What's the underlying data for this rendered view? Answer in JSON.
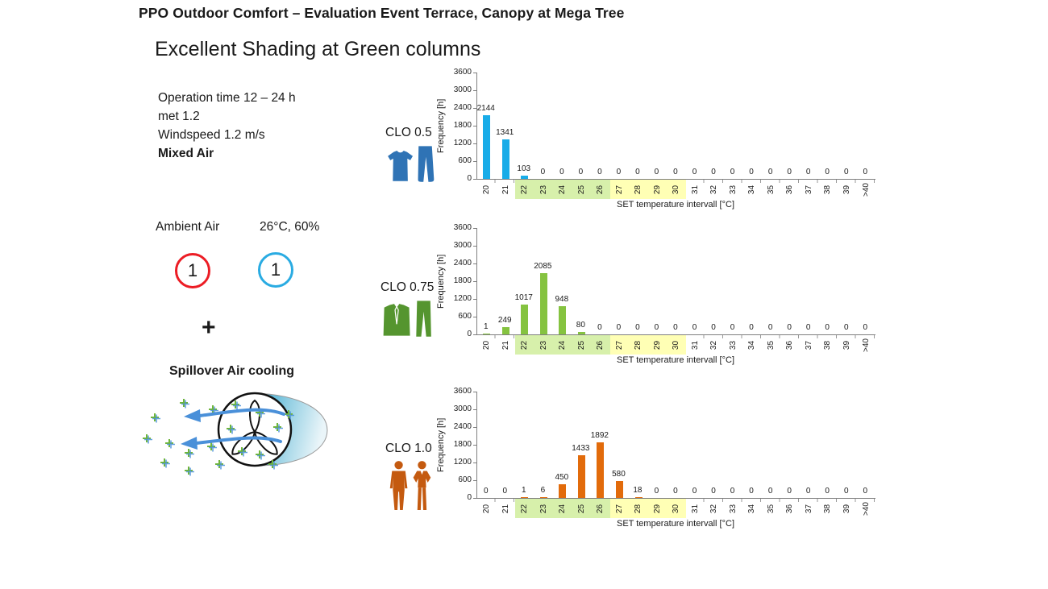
{
  "slide": {
    "title": "PPO Outdoor Comfort – Evaluation Event Terrace, Canopy at Mega Tree",
    "subtitle": "Excellent Shading at Green columns"
  },
  "conditions": {
    "line1": "Operation time 12 – 24 h",
    "line2": "met 1.2",
    "line3": "Windspeed 1.2 m/s",
    "line4": "Mixed Air"
  },
  "ambient": {
    "label": "Ambient Air",
    "value": "26°C, 60%",
    "red_badge": "1",
    "blue_badge": "1",
    "red_color": "#ec1c24",
    "blue_color": "#29abe2",
    "plus": "+"
  },
  "spillover": {
    "label": "Spillover Air cooling"
  },
  "chart_data": [
    {
      "type": "bar",
      "title": "CLO 0.5",
      "icon": "tshirt-and-jeans-icon",
      "bar_color": "#18ace8",
      "categories": [
        "20",
        "21",
        "22",
        "23",
        "24",
        "25",
        "26",
        "27",
        "28",
        "29",
        "30",
        "31",
        "32",
        "33",
        "34",
        "35",
        "36",
        "37",
        "38",
        "39",
        ">40"
      ],
      "values": [
        2144,
        1341,
        103,
        0,
        0,
        0,
        0,
        0,
        0,
        0,
        0,
        0,
        0,
        0,
        0,
        0,
        0,
        0,
        0,
        0,
        0
      ],
      "xlabel": "SET temperature intervall [°C]",
      "ylabel": "Frequency  [h]",
      "ylim": [
        0,
        3600
      ],
      "yticks": [
        0,
        600,
        1200,
        1800,
        2400,
        3000,
        3600
      ],
      "grid": false,
      "highlight_bands": [
        {
          "from": "22",
          "to": "26",
          "color": "#d7f0ab"
        },
        {
          "from": "27",
          "to": "30",
          "color": "#ffffb5"
        }
      ]
    },
    {
      "type": "bar",
      "title": "CLO 0.75",
      "icon": "shirt-and-trousers-icon",
      "bar_color": "#85c340",
      "categories": [
        "20",
        "21",
        "22",
        "23",
        "24",
        "25",
        "26",
        "27",
        "28",
        "29",
        "30",
        "31",
        "32",
        "33",
        "34",
        "35",
        "36",
        "37",
        "38",
        "39",
        ">40"
      ],
      "values": [
        1,
        249,
        1017,
        2085,
        948,
        80,
        0,
        0,
        0,
        0,
        0,
        0,
        0,
        0,
        0,
        0,
        0,
        0,
        0,
        0,
        0
      ],
      "xlabel": "SET temperature intervall [°C]",
      "ylabel": "Frequency  [h]",
      "ylim": [
        0,
        3600
      ],
      "yticks": [
        0,
        600,
        1200,
        1800,
        2400,
        3000,
        3600
      ],
      "grid": false,
      "highlight_bands": [
        {
          "from": "22",
          "to": "26",
          "color": "#d7f0ab"
        },
        {
          "from": "27",
          "to": "30",
          "color": "#ffffb5"
        }
      ]
    },
    {
      "type": "bar",
      "title": "CLO 1.0",
      "icon": "businessman-and-businesswoman-icon",
      "bar_color": "#e26b0b",
      "categories": [
        "20",
        "21",
        "22",
        "23",
        "24",
        "25",
        "26",
        "27",
        "28",
        "29",
        "30",
        "31",
        "32",
        "33",
        "34",
        "35",
        "36",
        "37",
        "38",
        "39",
        ">40"
      ],
      "values": [
        0,
        0,
        1,
        6,
        450,
        1433,
        1892,
        580,
        18,
        0,
        0,
        0,
        0,
        0,
        0,
        0,
        0,
        0,
        0,
        0,
        0
      ],
      "xlabel": "SET temperature intervall [°C]",
      "ylabel": "Frequency  [h]",
      "ylim": [
        0,
        3600
      ],
      "yticks": [
        0,
        600,
        1200,
        1800,
        2400,
        3000,
        3600
      ],
      "grid": false,
      "highlight_bands": [
        {
          "from": "22",
          "to": "26",
          "color": "#d7f0ab"
        },
        {
          "from": "27",
          "to": "30",
          "color": "#ffffb5"
        }
      ]
    }
  ]
}
